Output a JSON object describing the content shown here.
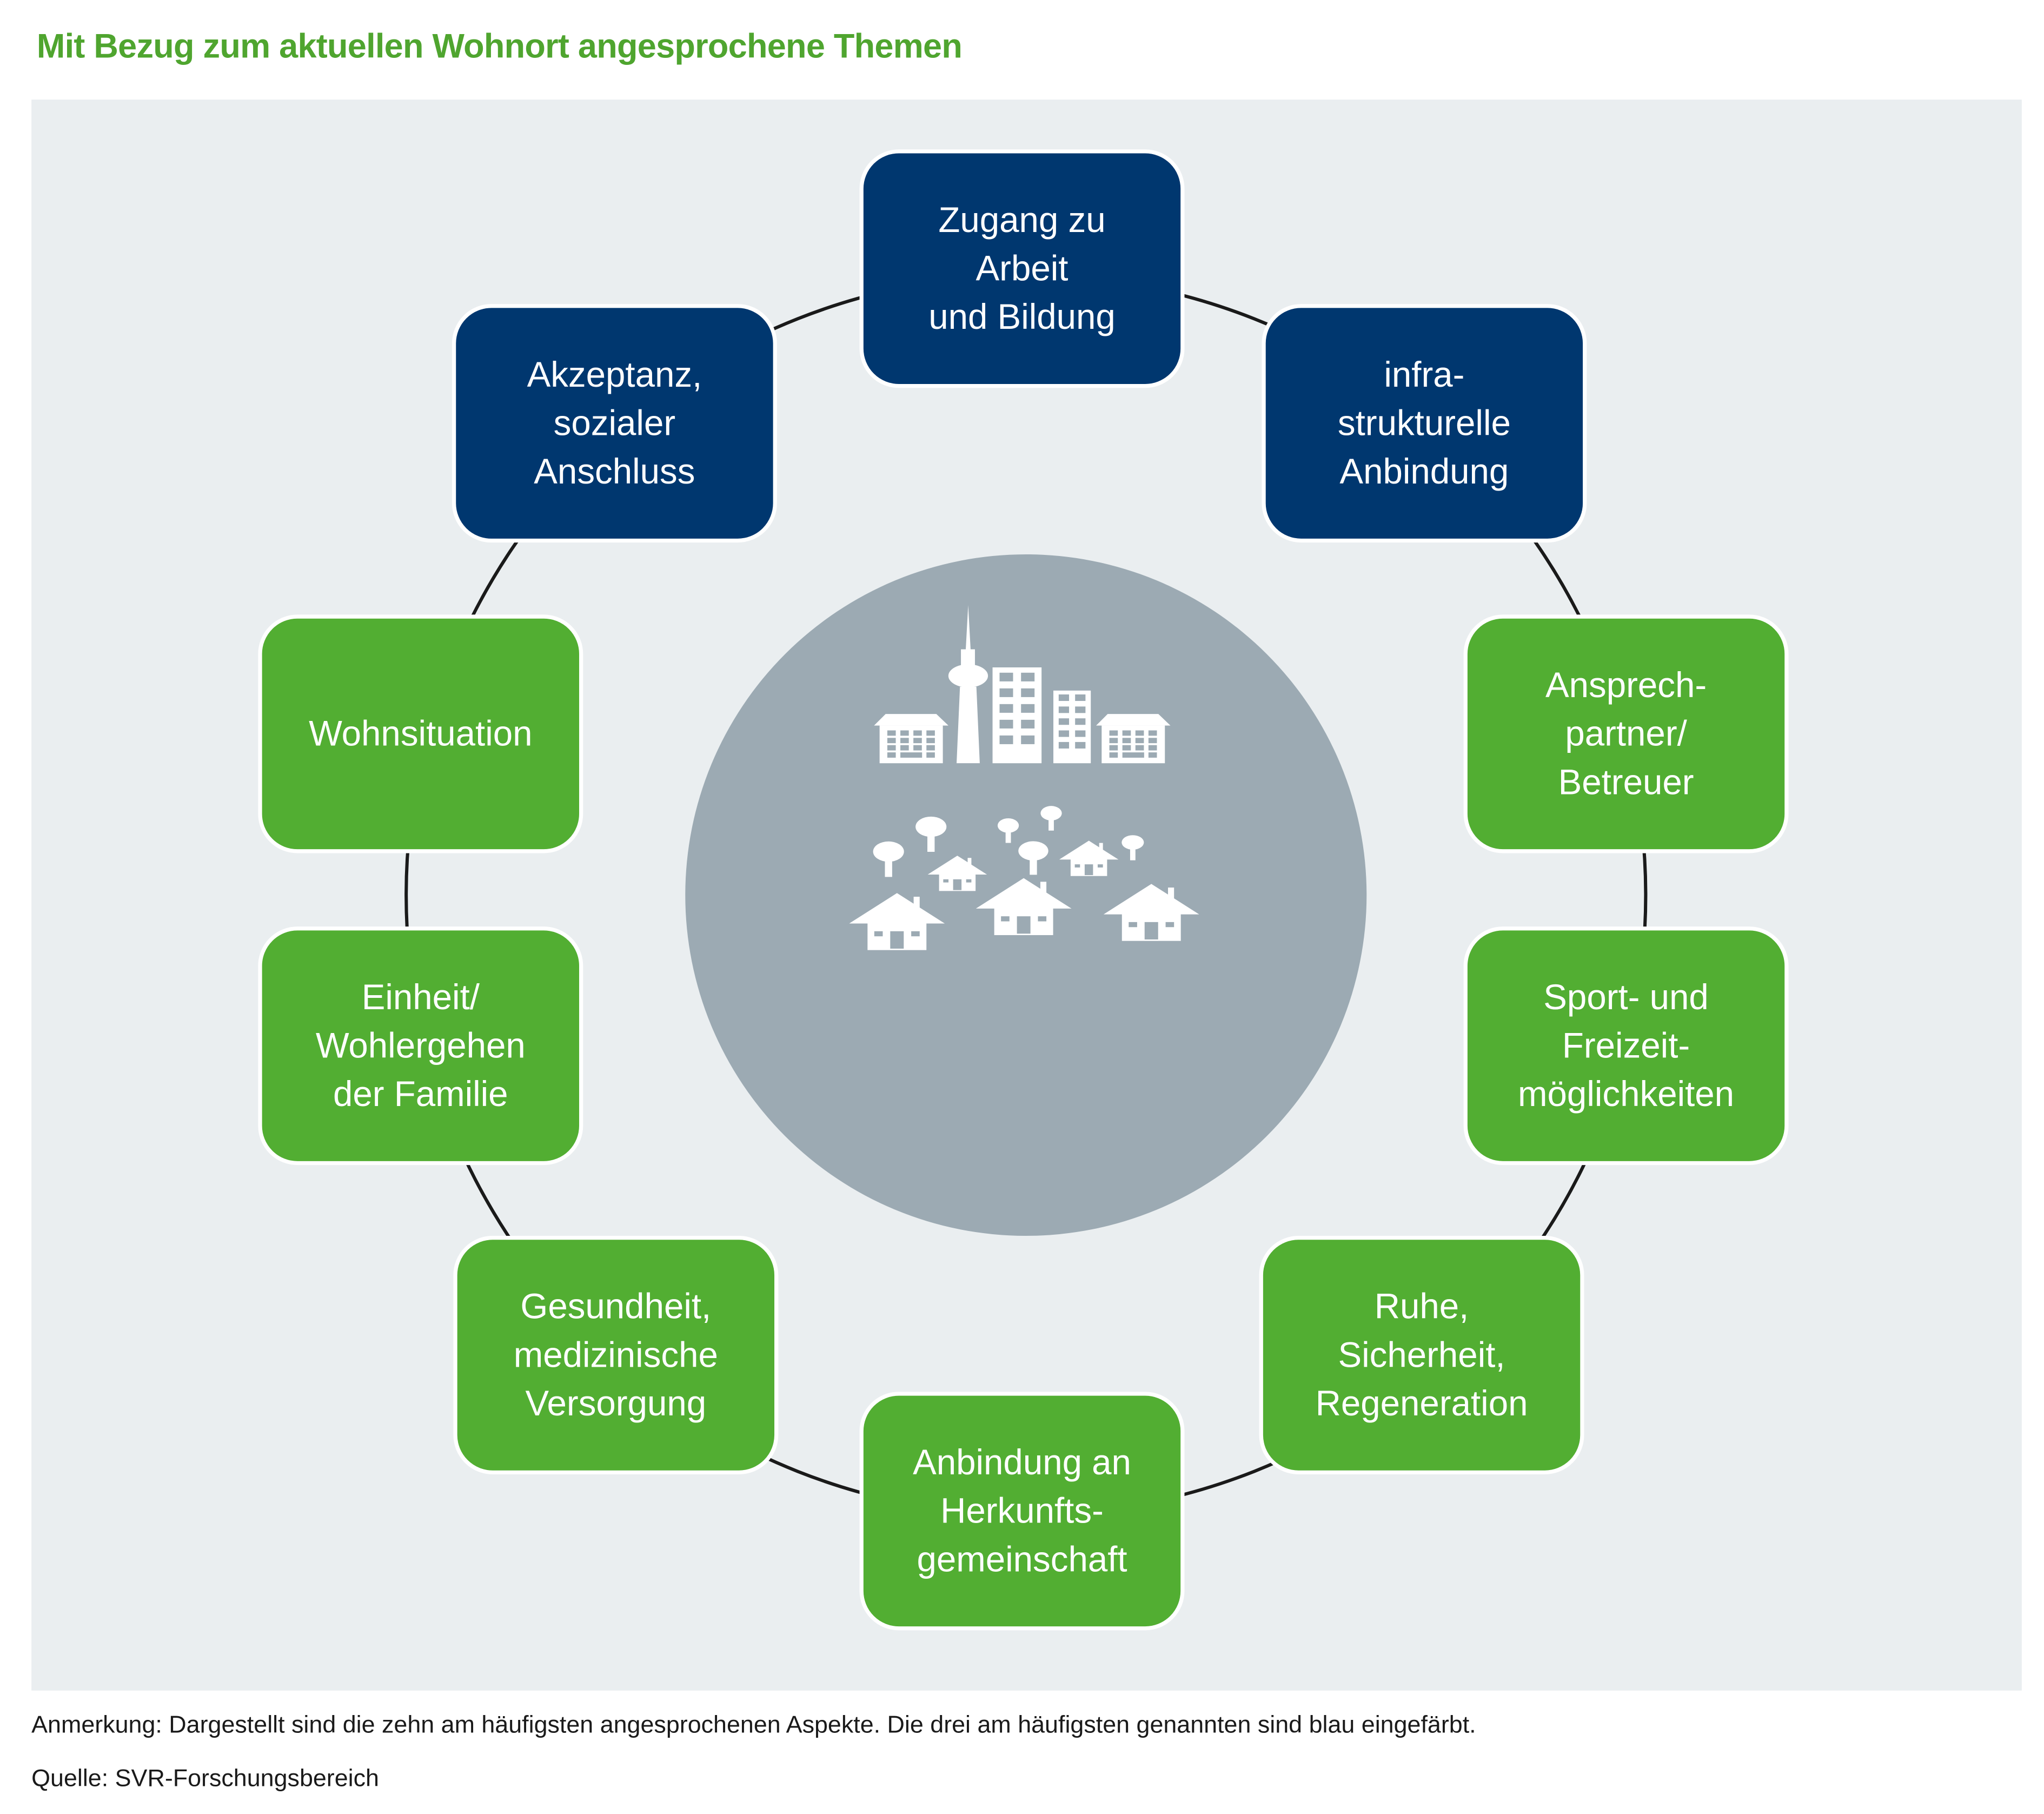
{
  "title": "Mit Bezug zum aktuellen Wohnort angesprochene Themen",
  "colors": {
    "title": "#4fa52f",
    "panel": "#eaeef0",
    "top_three": "#00376f",
    "others": "#52ae32",
    "center_circle": "#9caab3"
  },
  "center_icon": "city-and-village-icon",
  "topics": [
    {
      "lines": [
        "Zugang zu",
        "Arbeit",
        "und Bildung"
      ],
      "highlight": true
    },
    {
      "lines": [
        "infra-",
        "strukturelle",
        "Anbindung"
      ],
      "highlight": true
    },
    {
      "lines": [
        "Ansprech-",
        "partner/",
        "Betreuer"
      ],
      "highlight": false
    },
    {
      "lines": [
        "Sport- und",
        "Freizeit-",
        "möglichkeiten"
      ],
      "highlight": false
    },
    {
      "lines": [
        "Ruhe,",
        "Sicherheit,",
        "Regeneration"
      ],
      "highlight": false
    },
    {
      "lines": [
        "Anbindung an",
        "Herkunfts-",
        "gemeinschaft"
      ],
      "highlight": false
    },
    {
      "lines": [
        "Gesundheit,",
        "medizinische",
        "Versorgung"
      ],
      "highlight": false
    },
    {
      "lines": [
        "Einheit/",
        "Wohlergehen",
        "der Familie"
      ],
      "highlight": false
    },
    {
      "lines": [
        "Wohnsituation"
      ],
      "highlight": false
    },
    {
      "lines": [
        "Akzeptanz,",
        "sozialer",
        "Anschluss"
      ],
      "highlight": true
    }
  ],
  "note": "Anmerkung: Dargestellt sind die zehn am häufigsten angesprochenen Aspekte. Die drei am häufigsten genannten sind blau eingefärbt.",
  "source": "Quelle: SVR-Forschungsbereich"
}
